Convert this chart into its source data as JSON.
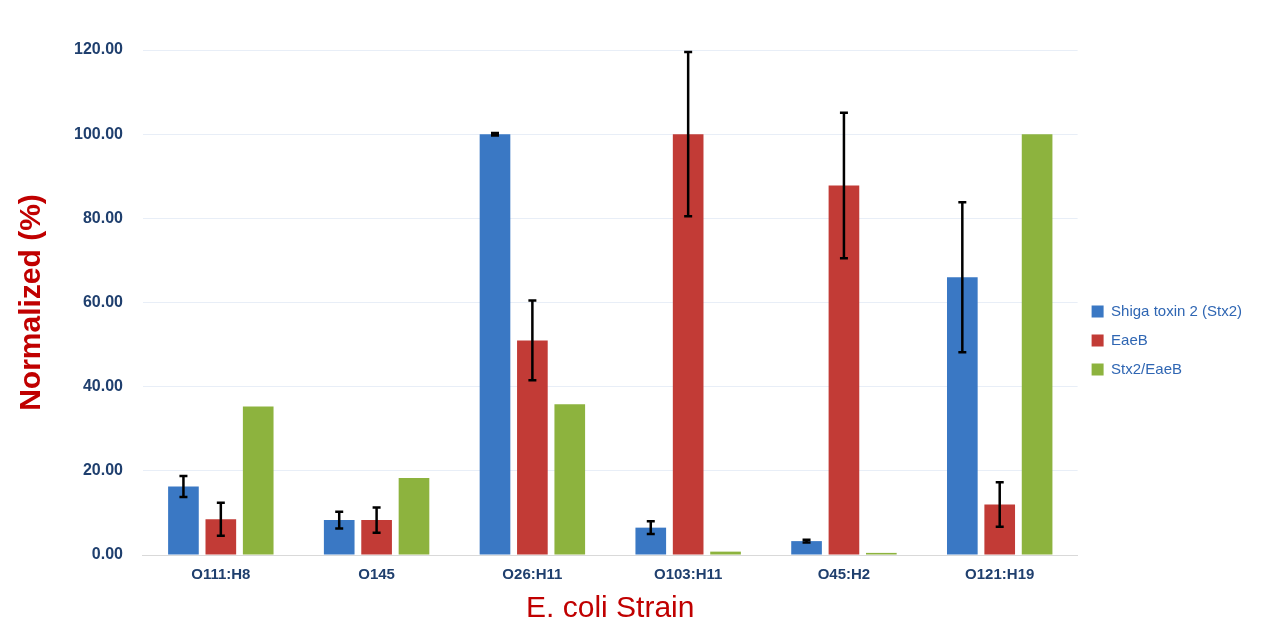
{
  "chart_data": {
    "type": "bar",
    "xlabel": "E. coli Strain",
    "ylabel": "Normalized (%)",
    "categories": [
      "O111:H8",
      "O145",
      "O26:H11",
      "O103:H11",
      "O45:H2",
      "O121:H19"
    ],
    "series": [
      {
        "name": "Shiga toxin 2 (Stx2)",
        "color": "#3a78c4",
        "values": [
          16.3,
          8.3,
          100,
          6.5,
          3.3,
          66
        ],
        "errors": [
          2.5,
          2,
          0.3,
          1.5,
          0.3,
          17.8
        ]
      },
      {
        "name": "EaeB",
        "color": "#c23b36",
        "values": [
          8.5,
          8.3,
          51,
          100,
          87.8,
          12
        ],
        "errors": [
          3.9,
          3,
          9.5,
          19.5,
          17.3,
          5.3
        ]
      },
      {
        "name": "Stx2/EaeB",
        "color": "#8db33e",
        "values": [
          35.3,
          18.3,
          35.8,
          0.8,
          0.5,
          100
        ]
      }
    ],
    "ylim": [
      0,
      120
    ],
    "yticks": [
      {
        "value": 0,
        "label": "0.00"
      },
      {
        "value": 20,
        "label": "20.00"
      },
      {
        "value": 40,
        "label": "40.00"
      },
      {
        "value": 60,
        "label": "60.00"
      },
      {
        "value": 80,
        "label": "80.00"
      },
      {
        "value": 100,
        "label": "100.00"
      },
      {
        "value": 120,
        "label": "120.00"
      }
    ],
    "grid": "y",
    "legend": "right"
  }
}
